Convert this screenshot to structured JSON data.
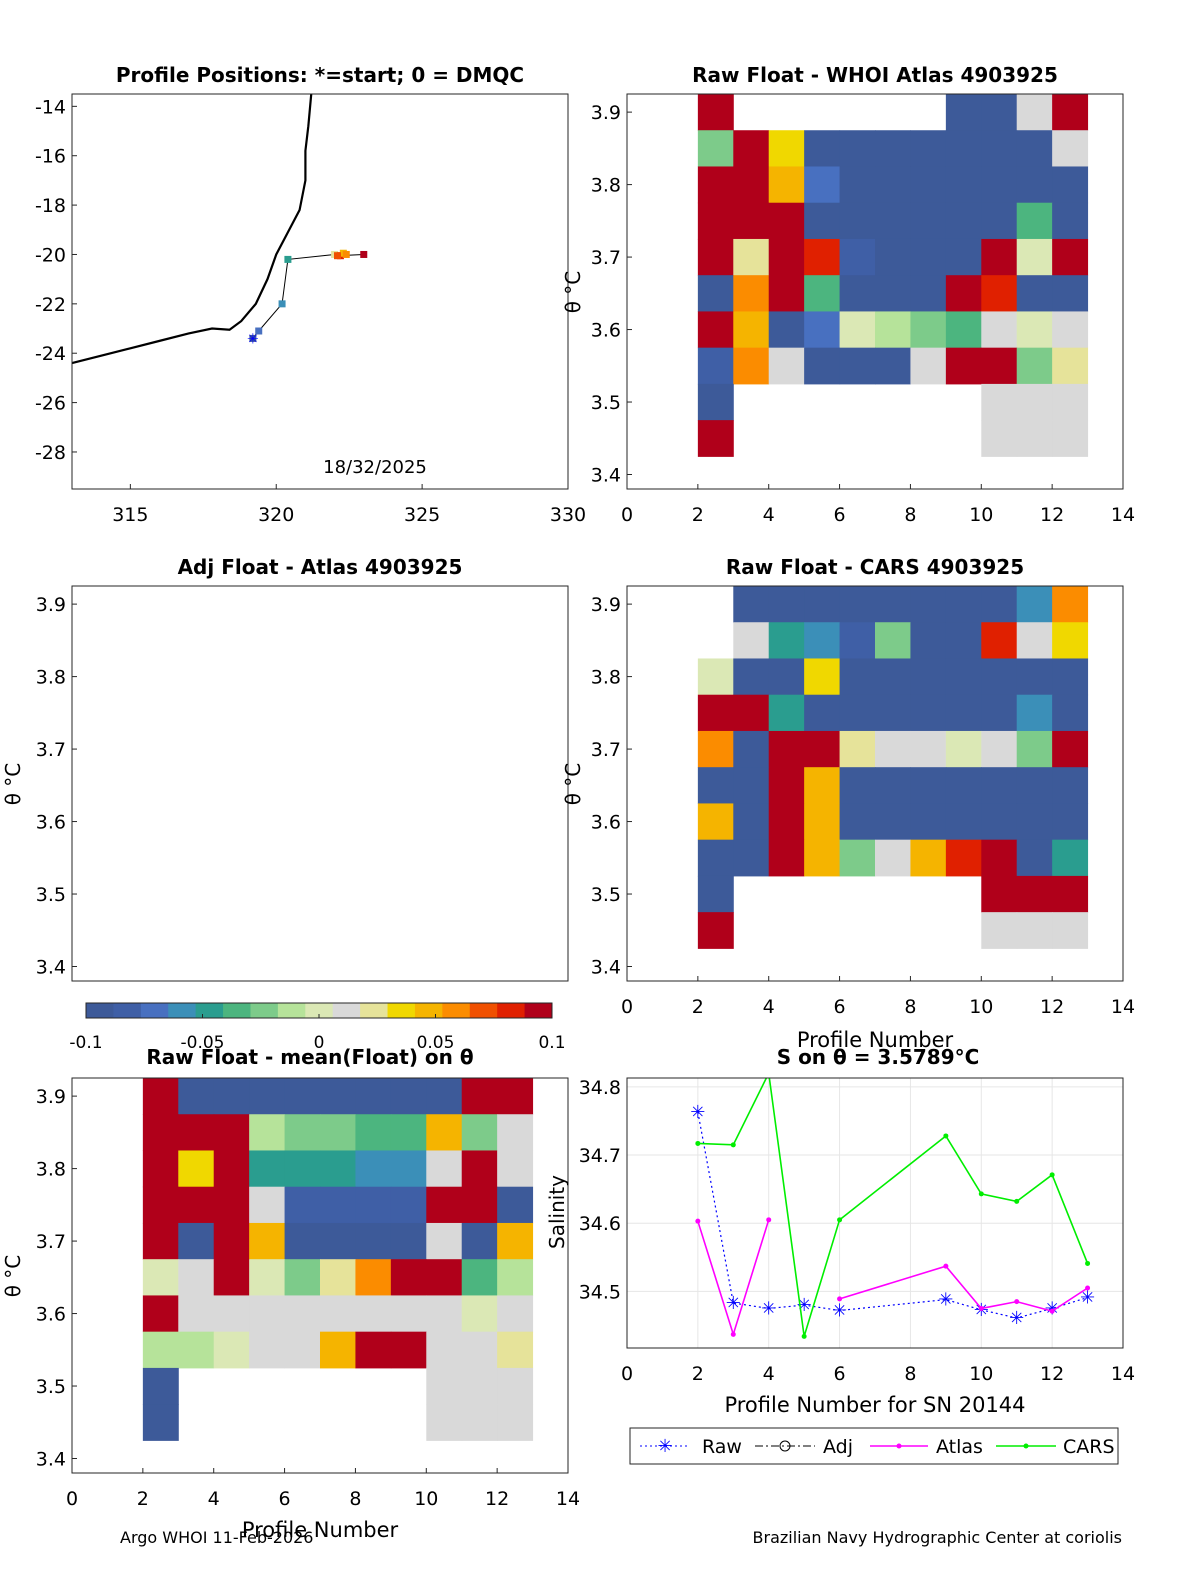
{
  "footer": {
    "left": "Argo WHOI 11-Feb-2026",
    "right": "Brazilian Navy Hydrographic Center at coriolis"
  },
  "colors": {
    "cmap": [
      "#3d5a99",
      "#3f5fa6",
      "#4870c0",
      "#3b8fb8",
      "#2a9d8f",
      "#4cb57f",
      "#7dcb8a",
      "#b6e39a",
      "#dbe8b5",
      "#d9d9d9",
      "#e6e39a",
      "#f0d800",
      "#f5b400",
      "#fb8c00",
      "#f05000",
      "#e02000",
      "#b0001a"
    ],
    "raw": "#0000ff",
    "adj": "#000000",
    "atlas": "#ff00ff",
    "cars": "#00ee00"
  },
  "colorbar": {
    "ticks": [
      "-0.1",
      "-0.05",
      "0",
      "0.05",
      "0.1"
    ]
  },
  "map": {
    "title": "Profile Positions: *=start; 0 = DMQC",
    "date_label": "18/32/2025",
    "xticks": [
      "315",
      "320",
      "325",
      "330"
    ],
    "yticks": [
      "-14",
      "-16",
      "-18",
      "-20",
      "-22",
      "-24",
      "-26",
      "-28"
    ],
    "chart_data": {
      "type": "scatter",
      "xlim": [
        313,
        330
      ],
      "ylim": [
        -29.5,
        -13.5
      ],
      "track": [
        {
          "lon": 319.2,
          "lat": -23.4,
          "c": 0
        },
        {
          "lon": 319.4,
          "lat": -23.1,
          "c": 2
        },
        {
          "lon": 320.2,
          "lat": -22.0,
          "c": 3
        },
        {
          "lon": 320.4,
          "lat": -20.2,
          "c": 4
        },
        {
          "lon": 322.0,
          "lat": -20.0,
          "c": 10
        },
        {
          "lon": 322.2,
          "lat": -20.05,
          "c": 15
        },
        {
          "lon": 322.3,
          "lat": -19.95,
          "c": 12
        },
        {
          "lon": 322.4,
          "lat": -20.0,
          "c": 13
        },
        {
          "lon": 322.1,
          "lat": -20.05,
          "c": 14
        },
        {
          "lon": 323.0,
          "lat": -20.0,
          "c": 16
        }
      ],
      "coast": [
        [
          313,
          -24.4
        ],
        [
          314,
          -24.1
        ],
        [
          315,
          -23.8
        ],
        [
          316,
          -23.5
        ],
        [
          317,
          -23.2
        ],
        [
          317.8,
          -23.0
        ],
        [
          318.4,
          -23.05
        ],
        [
          318.8,
          -22.7
        ],
        [
          319.3,
          -22.0
        ],
        [
          319.7,
          -21.0
        ],
        [
          320.0,
          -20.0
        ],
        [
          320.4,
          -19.1
        ],
        [
          320.8,
          -18.2
        ],
        [
          321.0,
          -17.0
        ],
        [
          321.0,
          -15.8
        ],
        [
          321.1,
          -14.8
        ],
        [
          321.2,
          -13.5
        ]
      ]
    }
  },
  "heat_panels": [
    {
      "title": "Raw Float - WHOI Atlas  4903925",
      "ylabel": "θ °C",
      "xlabel": "",
      "xticks": [
        "0",
        "2",
        "4",
        "6",
        "8",
        "10",
        "12",
        "14"
      ],
      "yticks": [
        "3.4",
        "3.5",
        "3.6",
        "3.7",
        "3.8",
        "3.9"
      ],
      "chart_data": {
        "type": "heatmap",
        "xlim": [
          0,
          14
        ],
        "ylim": [
          3.38,
          3.925
        ],
        "profiles": [
          2,
          3,
          4,
          5,
          6,
          7,
          8,
          9,
          10,
          11,
          12
        ],
        "theta_rows": [
          3.9,
          3.85,
          3.8,
          3.75,
          3.7,
          3.65,
          3.6,
          3.55,
          3.5,
          3.45
        ],
        "cells": [
          [
            16,
            -1,
            -1,
            -1,
            -1,
            -1,
            -1,
            0,
            0,
            9,
            16
          ],
          [
            6,
            16,
            11,
            0,
            0,
            0,
            0,
            0,
            0,
            0,
            9
          ],
          [
            16,
            16,
            12,
            2,
            0,
            0,
            0,
            0,
            0,
            0,
            0
          ],
          [
            16,
            16,
            16,
            0,
            0,
            0,
            0,
            0,
            0,
            5,
            0
          ],
          [
            16,
            10,
            16,
            15,
            1,
            0,
            0,
            0,
            16,
            8,
            16
          ],
          [
            0,
            13,
            16,
            5,
            0,
            0,
            0,
            16,
            15,
            0,
            0
          ],
          [
            16,
            12,
            0,
            2,
            8,
            7,
            6,
            5,
            9,
            8,
            9
          ],
          [
            1,
            13,
            9,
            0,
            0,
            0,
            9,
            16,
            16,
            6,
            10
          ],
          [
            0,
            -1,
            -1,
            -1,
            -1,
            -1,
            -1,
            -1,
            9,
            9,
            9
          ],
          [
            16,
            -1,
            -1,
            -1,
            -1,
            -1,
            -1,
            -1,
            9,
            9,
            9
          ]
        ]
      }
    },
    {
      "title": "Adj Float - Atlas  4903925",
      "ylabel": "θ °C",
      "xlabel": "",
      "xticks": [],
      "yticks": [
        "3.4",
        "3.5",
        "3.6",
        "3.7",
        "3.8",
        "3.9"
      ],
      "chart_data": {
        "type": "heatmap",
        "xlim": [
          0,
          14
        ],
        "ylim": [
          3.38,
          3.925
        ],
        "profiles": [],
        "theta_rows": [],
        "cells": []
      }
    },
    {
      "title": "Raw Float - CARS  4903925",
      "ylabel": "θ °C",
      "xlabel": "Profile Number",
      "xticks": [
        "0",
        "2",
        "4",
        "6",
        "8",
        "10",
        "12",
        "14"
      ],
      "yticks": [
        "3.4",
        "3.5",
        "3.6",
        "3.7",
        "3.8",
        "3.9"
      ],
      "chart_data": {
        "type": "heatmap",
        "xlim": [
          0,
          14
        ],
        "ylim": [
          3.38,
          3.925
        ],
        "profiles": [
          2,
          3,
          4,
          5,
          6,
          7,
          8,
          9,
          10,
          11,
          12
        ],
        "theta_rows": [
          3.9,
          3.85,
          3.8,
          3.75,
          3.7,
          3.65,
          3.6,
          3.55,
          3.5,
          3.45
        ],
        "cells": [
          [
            -1,
            0,
            0,
            0,
            0,
            0,
            0,
            0,
            0,
            3,
            13
          ],
          [
            -1,
            9,
            4,
            3,
            1,
            6,
            0,
            0,
            15,
            9,
            11
          ],
          [
            8,
            0,
            0,
            11,
            0,
            0,
            0,
            0,
            0,
            0,
            0
          ],
          [
            16,
            16,
            4,
            0,
            0,
            0,
            0,
            0,
            0,
            3,
            0
          ],
          [
            13,
            0,
            16,
            16,
            10,
            9,
            9,
            8,
            9,
            6,
            16
          ],
          [
            0,
            0,
            16,
            12,
            0,
            0,
            0,
            0,
            0,
            0,
            0
          ],
          [
            12,
            0,
            16,
            12,
            0,
            0,
            0,
            0,
            0,
            0,
            0
          ],
          [
            0,
            0,
            16,
            12,
            6,
            9,
            12,
            15,
            16,
            0,
            4
          ],
          [
            0,
            -1,
            -1,
            -1,
            -1,
            -1,
            -1,
            -1,
            16,
            16,
            16
          ],
          [
            16,
            -1,
            -1,
            -1,
            -1,
            -1,
            -1,
            -1,
            9,
            9,
            9
          ]
        ]
      }
    },
    {
      "title": "Raw Float - mean(Float) on θ",
      "ylabel": "θ °C",
      "xlabel": "Profile Number",
      "xticks": [
        "0",
        "2",
        "4",
        "6",
        "8",
        "10",
        "12",
        "14"
      ],
      "yticks": [
        "3.4",
        "3.5",
        "3.6",
        "3.7",
        "3.8",
        "3.9"
      ],
      "chart_data": {
        "type": "heatmap",
        "xlim": [
          0,
          14
        ],
        "ylim": [
          3.38,
          3.925
        ],
        "profiles": [
          2,
          3,
          4,
          5,
          6,
          7,
          8,
          9,
          10,
          11,
          12
        ],
        "theta_rows": [
          3.9,
          3.85,
          3.8,
          3.75,
          3.7,
          3.65,
          3.6,
          3.55,
          3.5,
          3.45
        ],
        "cells": [
          [
            16,
            0,
            0,
            0,
            0,
            0,
            0,
            0,
            0,
            16,
            16
          ],
          [
            16,
            16,
            16,
            7,
            6,
            6,
            5,
            5,
            12,
            6,
            9
          ],
          [
            16,
            11,
            16,
            4,
            4,
            4,
            3,
            3,
            9,
            16,
            9
          ],
          [
            16,
            16,
            16,
            9,
            1,
            1,
            1,
            1,
            16,
            16,
            0
          ],
          [
            16,
            0,
            16,
            12,
            0,
            0,
            0,
            0,
            9,
            0,
            12
          ],
          [
            8,
            9,
            16,
            8,
            6,
            10,
            13,
            16,
            16,
            5,
            7
          ],
          [
            16,
            9,
            9,
            9,
            9,
            9,
            9,
            9,
            9,
            8,
            9
          ],
          [
            7,
            7,
            8,
            9,
            9,
            12,
            16,
            16,
            9,
            9,
            10
          ],
          [
            0,
            -1,
            -1,
            -1,
            -1,
            -1,
            -1,
            -1,
            9,
            9,
            9
          ],
          [
            0,
            -1,
            -1,
            -1,
            -1,
            -1,
            -1,
            -1,
            9,
            9,
            9
          ]
        ]
      }
    }
  ],
  "salinity": {
    "title": "S on θ = 3.5789°C",
    "ylabel": "Salinity",
    "xlabel": "Profile Number for SN 20144",
    "xticks": [
      "0",
      "2",
      "4",
      "6",
      "8",
      "10",
      "12",
      "14"
    ],
    "yticks": [
      "34.5",
      "34.6",
      "34.7",
      "34.8"
    ],
    "legend": [
      "Raw",
      "Adj",
      "Atlas",
      "CARS"
    ],
    "chart_data": {
      "type": "line",
      "xlim": [
        0,
        14
      ],
      "ylim": [
        34.417,
        34.813
      ],
      "series": [
        {
          "name": "Raw",
          "x": [
            2,
            3,
            4,
            5,
            6,
            9,
            10,
            11,
            12,
            13
          ],
          "y": [
            34.763,
            34.483,
            34.475,
            34.48,
            34.472,
            34.488,
            34.473,
            34.461,
            34.475,
            34.491
          ]
        },
        {
          "name": "Atlas",
          "x": [
            2,
            3,
            4,
            null,
            6,
            9,
            10,
            11,
            12,
            13
          ],
          "y": [
            34.603,
            34.437,
            34.605,
            null,
            34.489,
            34.537,
            34.475,
            34.485,
            34.471,
            34.505
          ]
        },
        {
          "name": "CARS",
          "x": [
            2,
            3,
            4,
            5,
            6,
            9,
            10,
            11,
            12,
            13
          ],
          "y": [
            34.717,
            34.715,
            34.82,
            34.434,
            34.605,
            34.728,
            34.643,
            34.632,
            34.671,
            34.541
          ]
        }
      ]
    }
  }
}
